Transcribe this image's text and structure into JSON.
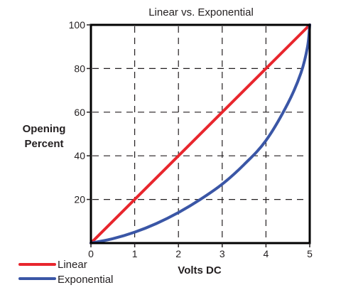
{
  "chart_data": {
    "type": "line",
    "title": "Linear vs. Exponential",
    "xlabel": "Volts DC",
    "ylabel_lines": [
      "Opening",
      "Percent"
    ],
    "xlim": [
      0,
      5
    ],
    "ylim": [
      0,
      100
    ],
    "x_ticks": [
      "0",
      "1",
      "2",
      "3",
      "4",
      "5"
    ],
    "y_ticks": [
      "20",
      "40",
      "60",
      "80",
      "100"
    ],
    "grid": true,
    "legend_position": "bottom-left",
    "series": [
      {
        "name": "Linear",
        "color": "#e8262d",
        "x": [
          0,
          5
        ],
        "y": [
          0,
          100
        ]
      },
      {
        "name": "Exponential",
        "color": "#3a56a6",
        "x": [
          0,
          0.5,
          1,
          1.5,
          2,
          2.5,
          3,
          3.5,
          4,
          4.5,
          4.8,
          4.95,
          5
        ],
        "y": [
          0,
          2,
          5,
          9,
          14,
          20,
          27,
          36,
          47,
          64,
          78,
          90,
          100
        ]
      }
    ]
  }
}
